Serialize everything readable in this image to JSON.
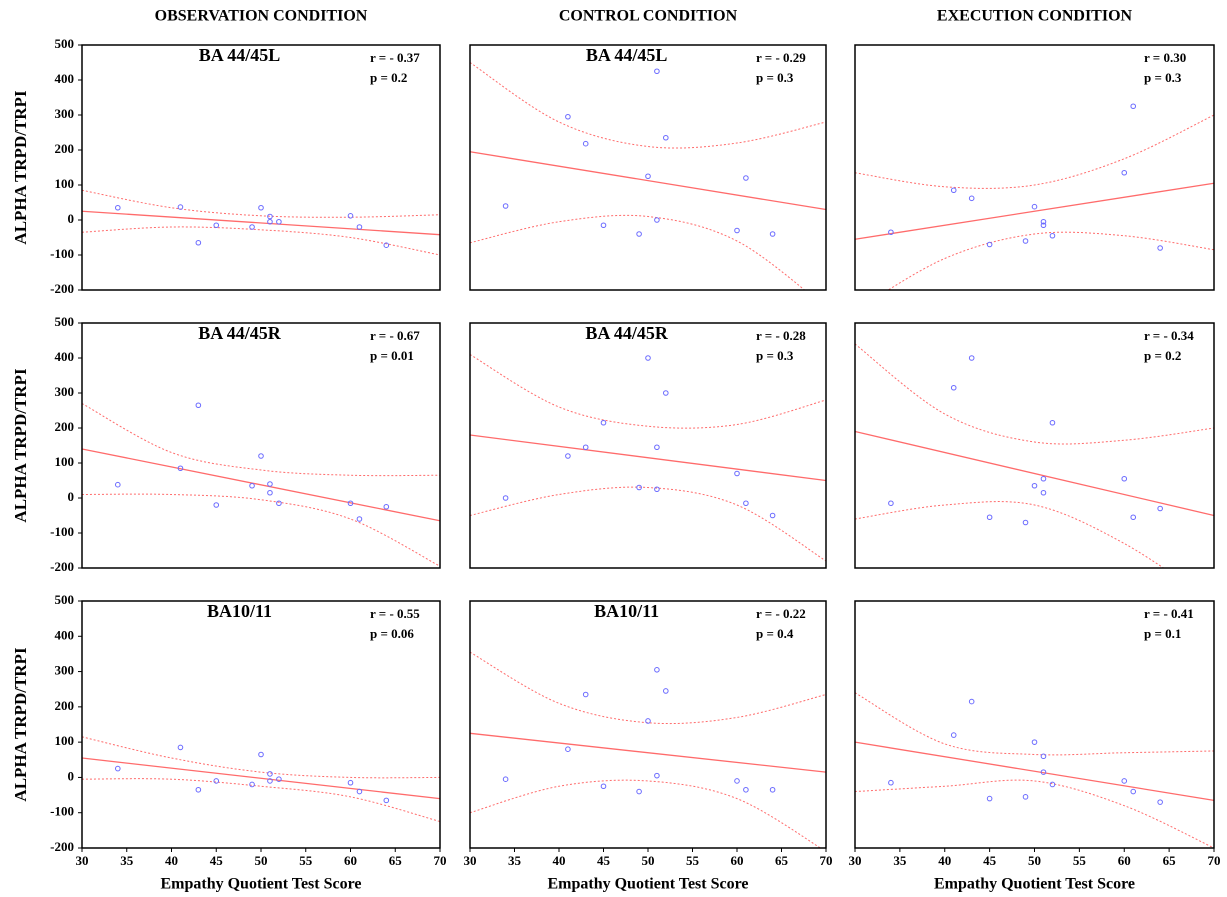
{
  "chart_data": [
    {
      "type": "scatter",
      "title": "OBSERVATION CONDITION",
      "region": "BA 44/45L",
      "annotations": [
        "r = - 0.37",
        "p = 0.2"
      ],
      "annotation_color": "#000000",
      "ylabel": "ALPHA TRPD/TRPI",
      "x": [
        34,
        41,
        43,
        45,
        49,
        50,
        51,
        51,
        52,
        60,
        61,
        64
      ],
      "y": [
        35,
        37,
        -65,
        -15,
        -20,
        35,
        10,
        -5,
        -5,
        12,
        -20,
        -72
      ],
      "point_color": "#6b6bff",
      "fit": {
        "x": [
          30,
          70
        ],
        "y": [
          25,
          -42
        ]
      },
      "fit_color": "#ff6b6b",
      "band": {
        "x": [
          30,
          40,
          50,
          60,
          70
        ],
        "upper": [
          85,
          35,
          12,
          8,
          15
        ],
        "lower": [
          -35,
          -20,
          -28,
          -50,
          -100
        ]
      },
      "xlim": [
        30,
        70
      ],
      "ylim": [
        -200,
        500
      ],
      "yticks": [
        -200,
        -100,
        0,
        100,
        200,
        300,
        400,
        500
      ]
    },
    {
      "type": "scatter",
      "title": "CONTROL CONDITION",
      "region": "BA 44/45L",
      "annotations": [
        "r = - 0.29",
        "p = 0.3"
      ],
      "annotation_color": "#000000",
      "x": [
        34,
        41,
        43,
        45,
        49,
        50,
        51,
        51,
        52,
        60,
        61,
        64
      ],
      "y": [
        40,
        295,
        218,
        -15,
        -40,
        125,
        425,
        0,
        235,
        -30,
        120,
        -40
      ],
      "point_color": "#6b6bff",
      "fit": {
        "x": [
          30,
          70
        ],
        "y": [
          195,
          30
        ]
      },
      "fit_color": "#ff6b6b",
      "band": {
        "x": [
          30,
          40,
          50,
          60,
          70
        ],
        "upper": [
          450,
          280,
          210,
          220,
          280
        ],
        "lower": [
          -65,
          -5,
          10,
          -60,
          -250
        ]
      },
      "xlim": [
        30,
        70
      ],
      "ylim": [
        -200,
        500
      ]
    },
    {
      "type": "scatter",
      "title": "EXECUTION CONDITION",
      "annotations": [
        "r = 0.30",
        "p = 0.3"
      ],
      "annotation_color": "#000000",
      "x": [
        34,
        41,
        43,
        45,
        49,
        50,
        51,
        51,
        52,
        60,
        61,
        64
      ],
      "y": [
        -35,
        85,
        62,
        -70,
        -60,
        38,
        -5,
        -15,
        -45,
        135,
        325,
        -80
      ],
      "point_color": "#6b6bff",
      "fit": {
        "x": [
          30,
          70
        ],
        "y": [
          -55,
          105
        ]
      },
      "fit_color": "#ff6b6b",
      "band": {
        "x": [
          30,
          40,
          50,
          60,
          70
        ],
        "upper": [
          135,
          95,
          100,
          175,
          300
        ],
        "lower": [
          -260,
          -110,
          -40,
          -45,
          -85
        ]
      },
      "xlim": [
        30,
        70
      ],
      "ylim": [
        -200,
        500
      ]
    },
    {
      "type": "scatter",
      "region": "BA 44/45R",
      "annotations": [
        "r = - 0.67",
        "p = 0.01"
      ],
      "annotation_color": "#ff0000",
      "ylabel": "ALPHA TRPD/TRPI",
      "x": [
        34,
        41,
        43,
        45,
        49,
        50,
        51,
        51,
        52,
        60,
        61,
        64
      ],
      "y": [
        38,
        85,
        265,
        -20,
        35,
        120,
        40,
        15,
        -15,
        -15,
        -60,
        -25
      ],
      "point_color": "#6b6bff",
      "fit": {
        "x": [
          30,
          70
        ],
        "y": [
          140,
          -65
        ]
      },
      "fit_color": "#ff6b6b",
      "band": {
        "x": [
          30,
          40,
          50,
          60,
          70
        ],
        "upper": [
          270,
          130,
          80,
          65,
          65
        ],
        "lower": [
          10,
          10,
          -5,
          -60,
          -195
        ]
      },
      "xlim": [
        30,
        70
      ],
      "ylim": [
        -200,
        500
      ],
      "yticks": [
        -200,
        -100,
        0,
        100,
        200,
        300,
        400,
        500
      ]
    },
    {
      "type": "scatter",
      "region": "BA 44/45R",
      "annotations": [
        "r = - 0.28",
        "p = 0.3"
      ],
      "annotation_color": "#000000",
      "x": [
        34,
        41,
        43,
        45,
        49,
        50,
        51,
        51,
        52,
        60,
        61,
        64
      ],
      "y": [
        0,
        120,
        145,
        215,
        30,
        400,
        145,
        25,
        300,
        70,
        -15,
        -50
      ],
      "point_color": "#6b6bff",
      "fit": {
        "x": [
          30,
          70
        ],
        "y": [
          180,
          50
        ]
      },
      "fit_color": "#ff6b6b",
      "band": {
        "x": [
          30,
          40,
          50,
          60,
          70
        ],
        "upper": [
          410,
          260,
          205,
          210,
          280
        ],
        "lower": [
          -50,
          10,
          30,
          -20,
          -180
        ]
      },
      "xlim": [
        30,
        70
      ],
      "ylim": [
        -200,
        500
      ]
    },
    {
      "type": "scatter",
      "annotations": [
        "r = - 0.34",
        "p = 0.2"
      ],
      "annotation_color": "#000000",
      "x": [
        34,
        41,
        43,
        45,
        49,
        50,
        51,
        51,
        52,
        60,
        61,
        64
      ],
      "y": [
        -15,
        315,
        400,
        -55,
        -70,
        35,
        55,
        15,
        215,
        55,
        -55,
        -30
      ],
      "point_color": "#6b6bff",
      "fit": {
        "x": [
          30,
          70
        ],
        "y": [
          190,
          -50
        ]
      },
      "fit_color": "#ff6b6b",
      "band": {
        "x": [
          30,
          40,
          50,
          60,
          70
        ],
        "upper": [
          440,
          240,
          160,
          165,
          200
        ],
        "lower": [
          -60,
          -20,
          -20,
          -130,
          -300
        ]
      },
      "xlim": [
        30,
        70
      ],
      "ylim": [
        -200,
        500
      ]
    },
    {
      "type": "scatter",
      "region": "BA10/11",
      "annotations": [
        "r = - 0.55",
        "p = 0.06"
      ],
      "annotation_color": "#000000",
      "ylabel": "ALPHA TRPD/TRPI",
      "xlabel": "Empathy Quotient Test Score",
      "x": [
        34,
        41,
        43,
        45,
        49,
        50,
        51,
        51,
        52,
        60,
        61,
        64
      ],
      "y": [
        25,
        85,
        -35,
        -10,
        -20,
        65,
        10,
        -10,
        -5,
        -15,
        -40,
        -65
      ],
      "point_color": "#6b6bff",
      "fit": {
        "x": [
          30,
          70
        ],
        "y": [
          55,
          -60
        ]
      },
      "fit_color": "#ff6b6b",
      "band": {
        "x": [
          30,
          40,
          50,
          60,
          70
        ],
        "upper": [
          115,
          55,
          15,
          0,
          0
        ],
        "lower": [
          -5,
          -5,
          -25,
          -55,
          -125
        ]
      },
      "xlim": [
        30,
        70
      ],
      "ylim": [
        -200,
        500
      ],
      "xticks": [
        30,
        35,
        40,
        45,
        50,
        55,
        60,
        65,
        70
      ],
      "yticks": [
        -200,
        -100,
        0,
        100,
        200,
        300,
        400,
        500
      ]
    },
    {
      "type": "scatter",
      "region": "BA10/11",
      "annotations": [
        "r = - 0.22",
        "p = 0.4"
      ],
      "annotation_color": "#000000",
      "xlabel": "Empathy Quotient Test Score",
      "x": [
        34,
        41,
        43,
        45,
        49,
        50,
        51,
        51,
        52,
        60,
        61,
        64
      ],
      "y": [
        -5,
        80,
        235,
        -25,
        -40,
        160,
        305,
        5,
        245,
        -10,
        -35,
        -35
      ],
      "point_color": "#6b6bff",
      "fit": {
        "x": [
          30,
          70
        ],
        "y": [
          125,
          15
        ]
      },
      "fit_color": "#ff6b6b",
      "band": {
        "x": [
          30,
          40,
          50,
          60,
          70
        ],
        "upper": [
          355,
          210,
          155,
          170,
          235
        ],
        "lower": [
          -100,
          -25,
          -10,
          -60,
          -210
        ]
      },
      "xlim": [
        30,
        70
      ],
      "ylim": [
        -200,
        500
      ],
      "xticks": [
        30,
        35,
        40,
        45,
        50,
        55,
        60,
        65,
        70
      ]
    },
    {
      "type": "scatter",
      "annotations": [
        "r = - 0.41",
        "p = 0.1"
      ],
      "annotation_color": "#000000",
      "xlabel": "Empathy Quotient Test Score",
      "x": [
        34,
        41,
        43,
        45,
        49,
        50,
        51,
        51,
        52,
        60,
        61,
        64
      ],
      "y": [
        -15,
        120,
        215,
        -60,
        -55,
        100,
        60,
        15,
        -20,
        -10,
        -40,
        -70
      ],
      "point_color": "#6b6bff",
      "fit": {
        "x": [
          30,
          70
        ],
        "y": [
          100,
          -65
        ]
      },
      "fit_color": "#ff6b6b",
      "band": {
        "x": [
          30,
          40,
          50,
          60,
          70
        ],
        "upper": [
          240,
          95,
          65,
          70,
          75
        ],
        "lower": [
          -40,
          -25,
          -10,
          -80,
          -200
        ]
      },
      "xlim": [
        30,
        70
      ],
      "ylim": [
        -200,
        500
      ],
      "xticks": [
        30,
        35,
        40,
        45,
        50,
        55,
        60,
        65,
        70
      ]
    }
  ]
}
